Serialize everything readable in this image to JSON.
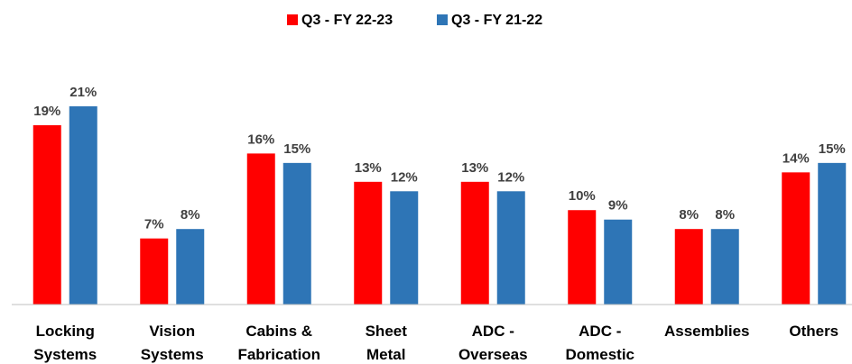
{
  "chart_data": {
    "type": "bar",
    "categories": [
      [
        "Locking",
        "Systems"
      ],
      [
        "Vision",
        "Systems"
      ],
      [
        "Cabins &",
        "Fabrication"
      ],
      [
        "Sheet",
        "Metal"
      ],
      [
        "ADC -",
        "Overseas"
      ],
      [
        "ADC -",
        "Domestic"
      ],
      [
        "Assemblies"
      ],
      [
        "Others"
      ]
    ],
    "series": [
      {
        "name": "Q3 - FY 22-23",
        "color": "#ff0000",
        "values": [
          19,
          7,
          16,
          13,
          13,
          10,
          8,
          14
        ],
        "value_labels": [
          "19%",
          "7%",
          "16%",
          "13%",
          "13%",
          "10%",
          "8%",
          "14%"
        ]
      },
      {
        "name": "Q3 - FY 21-22",
        "color": "#2e75b6",
        "values": [
          21,
          8,
          15,
          12,
          12,
          9,
          8,
          15
        ],
        "value_labels": [
          "21%",
          "8%",
          "15%",
          "12%",
          "12%",
          "9%",
          "8%",
          "15%"
        ]
      }
    ],
    "legend": "top"
  }
}
